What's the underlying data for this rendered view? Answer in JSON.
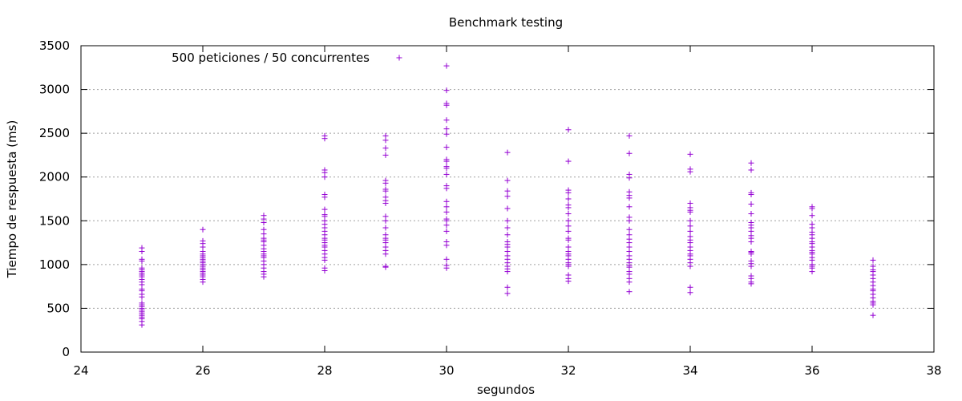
{
  "chart_data": {
    "type": "scatter",
    "title": "Benchmark testing",
    "xlabel": "segundos",
    "ylabel": "Tiempo de respuesta (ms)",
    "xlim": [
      24,
      38
    ],
    "ylim": [
      0,
      3500
    ],
    "xticks": [
      24,
      26,
      28,
      30,
      32,
      34,
      36,
      38
    ],
    "yticks": [
      0,
      500,
      1000,
      1500,
      2000,
      2500,
      3000,
      3500
    ],
    "grid": {
      "horizontal": true,
      "vertical": false
    },
    "legend_position": "top-left",
    "colors": {
      "series": "#9400d3"
    },
    "series": [
      {
        "name": "500 peticiones / 50 concurrentes",
        "points": [
          [
            25,
            1190
          ],
          [
            25,
            1150
          ],
          [
            25,
            1060
          ],
          [
            25,
            1040
          ],
          [
            25,
            960
          ],
          [
            25,
            940
          ],
          [
            25,
            920
          ],
          [
            25,
            900
          ],
          [
            25,
            880
          ],
          [
            25,
            860
          ],
          [
            25,
            830
          ],
          [
            25,
            800
          ],
          [
            25,
            770
          ],
          [
            25,
            720
          ],
          [
            25,
            700
          ],
          [
            25,
            660
          ],
          [
            25,
            630
          ],
          [
            25,
            560
          ],
          [
            25,
            540
          ],
          [
            25,
            520
          ],
          [
            25,
            500
          ],
          [
            25,
            480
          ],
          [
            25,
            460
          ],
          [
            25,
            440
          ],
          [
            25,
            420
          ],
          [
            25,
            400
          ],
          [
            25,
            380
          ],
          [
            25,
            350
          ],
          [
            25,
            310
          ],
          [
            26,
            1400
          ],
          [
            26,
            1270
          ],
          [
            26,
            1240
          ],
          [
            26,
            1200
          ],
          [
            26,
            1150
          ],
          [
            26,
            1120
          ],
          [
            26,
            1100
          ],
          [
            26,
            1080
          ],
          [
            26,
            1060
          ],
          [
            26,
            1040
          ],
          [
            26,
            1020
          ],
          [
            26,
            1000
          ],
          [
            26,
            980
          ],
          [
            26,
            960
          ],
          [
            26,
            940
          ],
          [
            26,
            920
          ],
          [
            26,
            900
          ],
          [
            26,
            880
          ],
          [
            26,
            860
          ],
          [
            26,
            830
          ],
          [
            26,
            800
          ],
          [
            27,
            1560
          ],
          [
            27,
            1520
          ],
          [
            27,
            1480
          ],
          [
            27,
            1400
          ],
          [
            27,
            1350
          ],
          [
            27,
            1300
          ],
          [
            27,
            1280
          ],
          [
            27,
            1260
          ],
          [
            27,
            1220
          ],
          [
            27,
            1180
          ],
          [
            27,
            1150
          ],
          [
            27,
            1120
          ],
          [
            27,
            1100
          ],
          [
            27,
            1080
          ],
          [
            27,
            1040
          ],
          [
            27,
            1000
          ],
          [
            27,
            960
          ],
          [
            27,
            920
          ],
          [
            27,
            890
          ],
          [
            27,
            860
          ],
          [
            28,
            2470
          ],
          [
            28,
            2440
          ],
          [
            28,
            2080
          ],
          [
            28,
            2050
          ],
          [
            28,
            2000
          ],
          [
            28,
            1800
          ],
          [
            28,
            1770
          ],
          [
            28,
            1630
          ],
          [
            28,
            1570
          ],
          [
            28,
            1550
          ],
          [
            28,
            1500
          ],
          [
            28,
            1460
          ],
          [
            28,
            1420
          ],
          [
            28,
            1380
          ],
          [
            28,
            1340
          ],
          [
            28,
            1300
          ],
          [
            28,
            1280
          ],
          [
            28,
            1250
          ],
          [
            28,
            1220
          ],
          [
            28,
            1200
          ],
          [
            28,
            1160
          ],
          [
            28,
            1120
          ],
          [
            28,
            1080
          ],
          [
            28,
            1050
          ],
          [
            28,
            960
          ],
          [
            28,
            930
          ],
          [
            29,
            2470
          ],
          [
            29,
            2420
          ],
          [
            29,
            2330
          ],
          [
            29,
            2250
          ],
          [
            29,
            1960
          ],
          [
            29,
            1930
          ],
          [
            29,
            1860
          ],
          [
            29,
            1840
          ],
          [
            29,
            1770
          ],
          [
            29,
            1730
          ],
          [
            29,
            1700
          ],
          [
            29,
            1550
          ],
          [
            29,
            1500
          ],
          [
            29,
            1420
          ],
          [
            29,
            1340
          ],
          [
            29,
            1300
          ],
          [
            29,
            1280
          ],
          [
            29,
            1250
          ],
          [
            29,
            1200
          ],
          [
            29,
            1160
          ],
          [
            29,
            1120
          ],
          [
            29,
            980
          ],
          [
            29,
            970
          ],
          [
            30,
            3270
          ],
          [
            30,
            2990
          ],
          [
            30,
            2840
          ],
          [
            30,
            2820
          ],
          [
            30,
            2650
          ],
          [
            30,
            2550
          ],
          [
            30,
            2490
          ],
          [
            30,
            2340
          ],
          [
            30,
            2200
          ],
          [
            30,
            2180
          ],
          [
            30,
            2120
          ],
          [
            30,
            2100
          ],
          [
            30,
            2030
          ],
          [
            30,
            1900
          ],
          [
            30,
            1870
          ],
          [
            30,
            1720
          ],
          [
            30,
            1660
          ],
          [
            30,
            1600
          ],
          [
            30,
            1520
          ],
          [
            30,
            1500
          ],
          [
            30,
            1450
          ],
          [
            30,
            1380
          ],
          [
            30,
            1260
          ],
          [
            30,
            1220
          ],
          [
            30,
            1060
          ],
          [
            30,
            990
          ],
          [
            30,
            960
          ],
          [
            31,
            2280
          ],
          [
            31,
            1960
          ],
          [
            31,
            1840
          ],
          [
            31,
            1780
          ],
          [
            31,
            1640
          ],
          [
            31,
            1500
          ],
          [
            31,
            1420
          ],
          [
            31,
            1340
          ],
          [
            31,
            1260
          ],
          [
            31,
            1230
          ],
          [
            31,
            1200
          ],
          [
            31,
            1150
          ],
          [
            31,
            1100
          ],
          [
            31,
            1060
          ],
          [
            31,
            1020
          ],
          [
            31,
            980
          ],
          [
            31,
            950
          ],
          [
            31,
            920
          ],
          [
            31,
            740
          ],
          [
            31,
            670
          ],
          [
            32,
            2540
          ],
          [
            32,
            2180
          ],
          [
            32,
            1850
          ],
          [
            32,
            1820
          ],
          [
            32,
            1750
          ],
          [
            32,
            1680
          ],
          [
            32,
            1650
          ],
          [
            32,
            1580
          ],
          [
            32,
            1500
          ],
          [
            32,
            1440
          ],
          [
            32,
            1380
          ],
          [
            32,
            1300
          ],
          [
            32,
            1280
          ],
          [
            32,
            1200
          ],
          [
            32,
            1150
          ],
          [
            32,
            1120
          ],
          [
            32,
            1100
          ],
          [
            32,
            1060
          ],
          [
            32,
            1020
          ],
          [
            32,
            1000
          ],
          [
            32,
            980
          ],
          [
            32,
            880
          ],
          [
            32,
            840
          ],
          [
            32,
            810
          ],
          [
            33,
            2470
          ],
          [
            33,
            2270
          ],
          [
            33,
            2030
          ],
          [
            33,
            1990
          ],
          [
            33,
            1830
          ],
          [
            33,
            1790
          ],
          [
            33,
            1760
          ],
          [
            33,
            1660
          ],
          [
            33,
            1540
          ],
          [
            33,
            1500
          ],
          [
            33,
            1400
          ],
          [
            33,
            1340
          ],
          [
            33,
            1290
          ],
          [
            33,
            1250
          ],
          [
            33,
            1200
          ],
          [
            33,
            1150
          ],
          [
            33,
            1100
          ],
          [
            33,
            1060
          ],
          [
            33,
            1020
          ],
          [
            33,
            990
          ],
          [
            33,
            970
          ],
          [
            33,
            920
          ],
          [
            33,
            890
          ],
          [
            33,
            840
          ],
          [
            33,
            800
          ],
          [
            33,
            690
          ],
          [
            34,
            2260
          ],
          [
            34,
            2090
          ],
          [
            34,
            2060
          ],
          [
            34,
            1700
          ],
          [
            34,
            1650
          ],
          [
            34,
            1620
          ],
          [
            34,
            1600
          ],
          [
            34,
            1500
          ],
          [
            34,
            1440
          ],
          [
            34,
            1380
          ],
          [
            34,
            1320
          ],
          [
            34,
            1280
          ],
          [
            34,
            1250
          ],
          [
            34,
            1200
          ],
          [
            34,
            1160
          ],
          [
            34,
            1120
          ],
          [
            34,
            1100
          ],
          [
            34,
            1060
          ],
          [
            34,
            1020
          ],
          [
            34,
            980
          ],
          [
            34,
            740
          ],
          [
            34,
            680
          ],
          [
            35,
            2160
          ],
          [
            35,
            2080
          ],
          [
            35,
            1820
          ],
          [
            35,
            1800
          ],
          [
            35,
            1690
          ],
          [
            35,
            1580
          ],
          [
            35,
            1480
          ],
          [
            35,
            1450
          ],
          [
            35,
            1420
          ],
          [
            35,
            1380
          ],
          [
            35,
            1330
          ],
          [
            35,
            1300
          ],
          [
            35,
            1260
          ],
          [
            35,
            1150
          ],
          [
            35,
            1140
          ],
          [
            35,
            1120
          ],
          [
            35,
            1040
          ],
          [
            35,
            1010
          ],
          [
            35,
            980
          ],
          [
            35,
            870
          ],
          [
            35,
            840
          ],
          [
            35,
            800
          ],
          [
            35,
            780
          ],
          [
            36,
            1660
          ],
          [
            36,
            1640
          ],
          [
            36,
            1560
          ],
          [
            36,
            1460
          ],
          [
            36,
            1420
          ],
          [
            36,
            1370
          ],
          [
            36,
            1340
          ],
          [
            36,
            1300
          ],
          [
            36,
            1260
          ],
          [
            36,
            1240
          ],
          [
            36,
            1200
          ],
          [
            36,
            1160
          ],
          [
            36,
            1140
          ],
          [
            36,
            1120
          ],
          [
            36,
            1080
          ],
          [
            36,
            1050
          ],
          [
            36,
            1000
          ],
          [
            36,
            980
          ],
          [
            36,
            960
          ],
          [
            36,
            920
          ],
          [
            37,
            1050
          ],
          [
            37,
            980
          ],
          [
            37,
            940
          ],
          [
            37,
            920
          ],
          [
            37,
            880
          ],
          [
            37,
            840
          ],
          [
            37,
            800
          ],
          [
            37,
            760
          ],
          [
            37,
            720
          ],
          [
            37,
            700
          ],
          [
            37,
            660
          ],
          [
            37,
            620
          ],
          [
            37,
            580
          ],
          [
            37,
            560
          ],
          [
            37,
            540
          ],
          [
            37,
            420
          ]
        ]
      }
    ]
  }
}
